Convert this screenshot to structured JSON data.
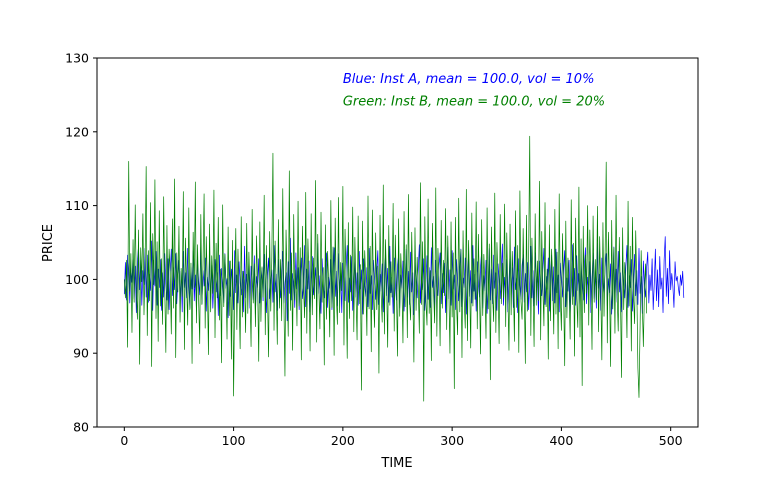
{
  "chart_data": {
    "type": "line",
    "title": "",
    "xlabel": "TIME",
    "ylabel": "PRICE",
    "xlim": [
      -25,
      525
    ],
    "ylim": [
      80,
      130
    ],
    "x_ticks": [
      0,
      100,
      200,
      300,
      400,
      500
    ],
    "y_ticks": [
      80,
      90,
      100,
      110,
      120,
      130
    ],
    "grid": false,
    "annotations": [
      {
        "text": "Blue: Inst A, mean = 100.0, vol = 10%",
        "color": "#0000ff",
        "x": 200,
        "y": 127.2
      },
      {
        "text": "Green: Inst B, mean = 100.0, vol = 20%",
        "color": "#008000",
        "x": 200,
        "y": 124.2
      }
    ],
    "series": [
      {
        "color": "#0000ff",
        "x_start": 0,
        "x_step": 1,
        "values": [
          98.0,
          102.3,
          97.2,
          103.3,
          101.4,
          96.8,
          101.5,
          99.6,
          103.5,
          97.4,
          101.8,
          95.5,
          102.4,
          104.5,
          98.6,
          102.6,
          96.5,
          101.2,
          99.3,
          104.2,
          97.6,
          103.3,
          96.9,
          100.7,
          98.5,
          105.2,
          95.8,
          102.6,
          99.1,
          103.8,
          96.5,
          101.4,
          98.9,
          102.7,
          95.8,
          100.9,
          97.6,
          103.5,
          99.4,
          97.2,
          102.8,
          95.9,
          100.8,
          104.1,
          97.8,
          101.6,
          98.6,
          103.5,
          96.7,
          99.9,
          102.6,
          97.3,
          101.1,
          95.6,
          103.8,
          98.9,
          100.9,
          97.5,
          104.2,
          99.2,
          96.1,
          101.6,
          98.7,
          103.9,
          97.1,
          100.6,
          95.7,
          102.5,
          99.8,
          97.9,
          104.4,
          96.7,
          101.2,
          99.1,
          102.9,
          95.7,
          100.3,
          98.5,
          103.4,
          97.3,
          101.9,
          96.1,
          99.8,
          102.7,
          98.3,
          100.9,
          95.1,
          103.3,
          97.8,
          101.5,
          99.5,
          96.8,
          103.5,
          98.8,
          100.1,
          94.8,
          102.5,
          97.7,
          101.4,
          99.6,
          95.9,
          103.9,
          98.2,
          100.6,
          96.8,
          102.4,
          99.5,
          97.9,
          101.1,
          95.6,
          104.5,
          97.5,
          100.7,
          98.2,
          102.3,
          96.1,
          101.8,
          99.4,
          97.2,
          103.2,
          95.3,
          100.4,
          98.9,
          102.8,
          96.8,
          99.9,
          101.5,
          97.1,
          103.4,
          98.5,
          95.5,
          100.5,
          102.9,
          97.4,
          99.7,
          101.3,
          96.9,
          104.6,
          98.3,
          100.7,
          95.8,
          102.7,
          99.6,
          97.5,
          101.1,
          103.8,
          96.8,
          99.5,
          100.9,
          94.4,
          102.4,
          98.1,
          105.6,
          97.2,
          100.8,
          99.7,
          96.2,
          103.6,
          98.7,
          101.6,
          95.9,
          100.2,
          102.9,
          97.4,
          99.1,
          104.6,
          96.3,
          101.4,
          98.7,
          102.5,
          95.6,
          100.4,
          103.1,
          97.9,
          99.5,
          101.6,
          96.8,
          104.9,
          98.1,
          100.5,
          95.4,
          102.8,
          99.3,
          97.5,
          101.9,
          103.6,
          96.2,
          100.3,
          98.8,
          102.7,
          95.9,
          99.6,
          104.3,
          97.7,
          101.1,
          96.4,
          103.5,
          98.6,
          100.8,
          95.5,
          102.2,
          99.7,
          97.1,
          101.7,
          104.6,
          96.9,
          100.2,
          98.3,
          103.1,
          95.8,
          99.6,
          102.4,
          97.6,
          100.9,
          96.5,
          103.8,
          98.7,
          101.3,
          95.3,
          102.8,
          99.2,
          97.7,
          101.6,
          96.3,
          104.2,
          98.1,
          100.5,
          95.9,
          102.6,
          99.8,
          97.3,
          101.2,
          103.9,
          96.6,
          100.7,
          98.4,
          102.1,
          95.6,
          99.9,
          103.4,
          97.8,
          101.5,
          96.9,
          104.5,
          98.2,
          100.3,
          95.4,
          102.9,
          99.5,
          97.2,
          101.8,
          103.3,
          96.1,
          100.6,
          98.8,
          102.5,
          95.7,
          99.4,
          104.1,
          97.6,
          101.1,
          96.6,
          103.7,
          98.3,
          100.9,
          95.2,
          102.3,
          99.8,
          97.5,
          101.4,
          104.7,
          96.8,
          100.1,
          98.6,
          102.8,
          95.8,
          99.7,
          103.2,
          97.3,
          101.6,
          96.2,
          104.3,
          98.9,
          100.4,
          95.6,
          102.6,
          99.1,
          97.8,
          101.9,
          103.6,
          96.7,
          100.8,
          98.2,
          102.2,
          95.5,
          99.6,
          104.4,
          97.4,
          101.3,
          96.5,
          103.9,
          98.7,
          100.6,
          95.9,
          102.7,
          99.4,
          97.1,
          101.5,
          104.1,
          96.3,
          100.2,
          98.9,
          102.9,
          95.3,
          99.8,
          103.5,
          97.7,
          101.2,
          96.8,
          104.6,
          98.4,
          100.7,
          95.7,
          102.4,
          99.6,
          97.6,
          101.7,
          103.8,
          96.1,
          100.5,
          98.5,
          102.6,
          95.4,
          99.3,
          104.2,
          97.2,
          101.4,
          96.7,
          103.3,
          98.8,
          100.9,
          95.8,
          102.1,
          99.9,
          97.4,
          101.1,
          104.8,
          96.5,
          100.3,
          98.1,
          102.7,
          95.6,
          99.5,
          103.7,
          97.9,
          101.6,
          96.2,
          104.4,
          98.6,
          100.1,
          95.5,
          102.8,
          99.2,
          97.3,
          101.9,
          103.4,
          96.9,
          100.8,
          98.3,
          102.3,
          95.9,
          99.7,
          104.5,
          97.5,
          101.2,
          96.4,
          103.6,
          98.9,
          100.5,
          95.3,
          102.5,
          99.4,
          97.8,
          101.4,
          104.2,
          96.6,
          100.4,
          98.7,
          102.9,
          95.7,
          99.9,
          103.3,
          97.1,
          101.7,
          96.8,
          104.1,
          98.2,
          100.6,
          95.6,
          102.2,
          99.6,
          97.6,
          101.3,
          103.9,
          96.3,
          100.2,
          98.4,
          102.6,
          95.4,
          99.3,
          104.7,
          97.7,
          101.5,
          96.5,
          103.2,
          98.5,
          100.8,
          95.9,
          102.7,
          99.1,
          97.2,
          101.8,
          104.3,
          96.7,
          100.3,
          98.6,
          102.4,
          95.5,
          99.8,
          103.6,
          97.4,
          101.1,
          96.1,
          104.9,
          98.8,
          100.7,
          95.8,
          102.9,
          99.5,
          97.9,
          101.6,
          103.5,
          96.4,
          100.1,
          98.2,
          102.1,
          95.3,
          99.6,
          104.4,
          97.3,
          101.4,
          96.9,
          103.8,
          98.3,
          100.9,
          95.6,
          102.3,
          99.7,
          97.5,
          101.9,
          104.6,
          96.2,
          100.5,
          98.9,
          102.7,
          95.7,
          99.4,
          103.4,
          97.8,
          101.2,
          96.6,
          104.2,
          98.1,
          100.4,
          95.4,
          102.5,
          99.2,
          97.6,
          101.7,
          103.7,
          96.8,
          100.6,
          98.5,
          102.8,
          95.9,
          99.5,
          104.1,
          97.1,
          101.3,
          96.3,
          103.1,
          98.7,
          100.2,
          95.5,
          102.6,
          105.8,
          97.7,
          101.5,
          96.7,
          103.9,
          98.6,
          100.8,
          99.1,
          96.2,
          102.4,
          99.8,
          100.4,
          98.9,
          97.8,
          100.6,
          99.2,
          101.1,
          97.5
        ]
      },
      {
        "color": "#008000",
        "x_start": 0,
        "x_step": 1,
        "values": [
          100.0,
          97.5,
          102.6,
          90.8,
          116.0,
          98.4,
          103.5,
          92.8,
          105.4,
          96.9,
          110.1,
          98.2,
          94.6,
          106.7,
          88.5,
          104.3,
          99.7,
          108.9,
          95.2,
          101.8,
          115.3,
          92.4,
          103.9,
          97.1,
          110.4,
          88.2,
          106.2,
          99.3,
          113.5,
          94.7,
          105.1,
          91.6,
          109.3,
          96.4,
          102.8,
          93.9,
          111.2,
          98.7,
          90.1,
          107.3,
          95.3,
          104.1,
          100.9,
          92.6,
          108.2,
          96.1,
          113.6,
          89.4,
          103.6,
          98.3,
          107.2,
          94.2,
          101.5,
          97.7,
          111.9,
          90.5,
          105.6,
          99.4,
          93.8,
          109.7,
          95.9,
          102.2,
          88.6,
          106.4,
          98.9,
          113.2,
          94.1,
          104.7,
          97.2,
          91.3,
          108.8,
          96.6,
          101.9,
          111.6,
          93.4,
          105.8,
          99.1,
          89.8,
          107.5,
          95.6,
          103.2,
          98.1,
          112.1,
          92.1,
          104.9,
          97.5,
          108.4,
          94.5,
          101.4,
          88.7,
          110.1,
          96.3,
          103.4,
          99.8,
          91.9,
          107.1,
          95.1,
          102.5,
          89.2,
          105.3,
          84.2,
          98.4,
          106.9,
          93.2,
          104.1,
          97.9,
          90.6,
          108.5,
          94.9,
          101.1,
          99.6,
          92.8,
          107.6,
          95.4,
          103.7,
          98.6,
          90.9,
          109.5,
          96.8,
          102.1,
          93.6,
          105.9,
          99.3,
          88.9,
          107.8,
          94.3,
          101.7,
          97.6,
          111.4,
          92.5,
          104.6,
          98.2,
          89.5,
          106.5,
          95.7,
          103.1,
          117.1,
          93.1,
          105.2,
          99.1,
          91.2,
          108.1,
          96.1,
          102.7,
          94.4,
          112.3,
          97.3,
          86.9,
          106.7,
          99.8,
          92.3,
          114.7,
          95.8,
          103.6,
          90.4,
          108.8,
          97.2,
          101.3,
          93.7,
          110.6,
          96.4,
          104.3,
          89.1,
          107.2,
          98.7,
          94.8,
          111.8,
          92.7,
          105.5,
          99.9,
          90.3,
          108.9,
          95.2,
          102.9,
          97.4,
          113.4,
          91.5,
          106.1,
          98.8,
          93.3,
          109.1,
          96.9,
          101.6,
          88.4,
          107.4,
          94.6,
          103.8,
          99.6,
          92.2,
          110.7,
          96.2,
          104.4,
          89.7,
          108.3,
          97.8,
          93.9,
          111.1,
          95.5,
          102.3,
          98.5,
          112.6,
          91.1,
          106.8,
          99.4,
          89.3,
          107.7,
          94.7,
          103.3,
          97.1,
          109.8,
          92.9,
          105.7,
          98.3,
          91.8,
          108.6,
          96.7,
          102.0,
          85.0,
          107.9,
          95.3,
          103.9,
          99.2,
          92.4,
          111.3,
          96.0,
          104.5,
          90.2,
          109.4,
          97.7,
          93.5,
          106.3,
          95.9,
          101.8,
          87.3,
          108.7,
          98.1,
          94.2,
          112.8,
          92.6,
          105.4,
          99.7,
          90.8,
          107.3,
          96.5,
          102.4,
          97.6,
          110.3,
          93.0,
          106.0,
          98.9,
          89.6,
          108.2,
          95.0,
          103.5,
          99.5,
          91.4,
          109.2,
          96.3,
          104.7,
          92.1,
          111.5,
          97.2,
          94.5,
          106.4,
          98.4,
          88.8,
          107.0,
          95.8,
          103.0,
          99.0,
          92.7,
          113.1,
          96.6,
          105.1,
          83.5,
          108.5,
          97.0,
          93.8,
          110.9,
          95.4,
          101.2,
          89.0,
          107.6,
          98.2,
          94.1,
          112.4,
          92.3,
          104.2,
          99.9,
          91.0,
          108.0,
          96.1,
          102.6,
          97.8,
          109.6,
          93.2,
          105.9,
          98.6,
          90.0,
          107.8,
          94.9,
          103.6,
          85.2,
          108.4,
          96.8,
          92.5,
          111.0,
          95.6,
          104.0,
          89.4,
          106.6,
          97.4,
          93.4,
          112.2,
          91.7,
          105.3,
          99.3,
          90.7,
          109.0,
          96.4,
          102.8,
          97.3,
          110.5,
          93.3,
          106.1,
          98.7,
          89.9,
          108.1,
          95.1,
          103.4,
          99.1,
          92.0,
          109.7,
          96.0,
          104.8,
          86.4,
          107.1,
          97.9,
          94.3,
          111.7,
          92.8,
          105.0,
          99.6,
          91.3,
          108.8,
          96.7,
          102.2,
          97.5,
          110.2,
          93.6,
          106.3,
          98.0,
          90.4,
          107.5,
          95.2,
          103.8,
          99.4,
          91.6,
          109.3,
          96.2,
          104.6,
          90.1,
          112.0,
          97.0,
          94.6,
          106.9,
          98.5,
          88.6,
          108.7,
          95.7,
          103.1,
          119.4,
          92.4,
          105.6,
          99.2,
          90.9,
          108.9,
          96.5,
          102.5,
          97.1,
          113.3,
          91.8,
          106.5,
          98.8,
          93.7,
          110.4,
          96.3,
          101.4,
          89.2,
          107.4,
          94.4,
          104.1,
          99.8,
          92.6,
          109.5,
          95.3,
          103.7,
          90.6,
          111.6,
          97.6,
          93.1,
          106.2,
          98.3,
          88.3,
          107.9,
          94.8,
          102.9,
          99.0,
          91.9,
          110.8,
          96.6,
          104.9,
          89.6,
          108.3,
          97.4,
          93.5,
          112.5,
          92.2,
          105.5,
          85.6,
          107.2,
          95.5,
          103.3,
          98.1,
          110.0,
          93.8,
          106.7,
          99.5,
          90.5,
          108.6,
          96.9,
          102.7,
          97.2,
          109.9,
          92.9,
          105.8,
          98.7,
          89.1,
          107.7,
          95.0,
          103.2,
          115.9,
          91.4,
          106.4,
          99.7,
          88.2,
          108.0,
          96.0,
          104.3,
          92.7,
          111.4,
          97.8,
          93.0,
          105.7,
          98.2,
          86.7,
          107.0,
          95.9,
          102.3,
          99.1,
          92.1,
          110.6,
          96.4,
          104.5,
          90.3,
          108.4,
          97.5,
          94.0,
          106.6,
          98.9,
          88.0,
          84.0,
          93.6,
          103.9,
          96.8,
          90.9,
          98.6,
          102.1,
          95.4
        ]
      }
    ]
  }
}
